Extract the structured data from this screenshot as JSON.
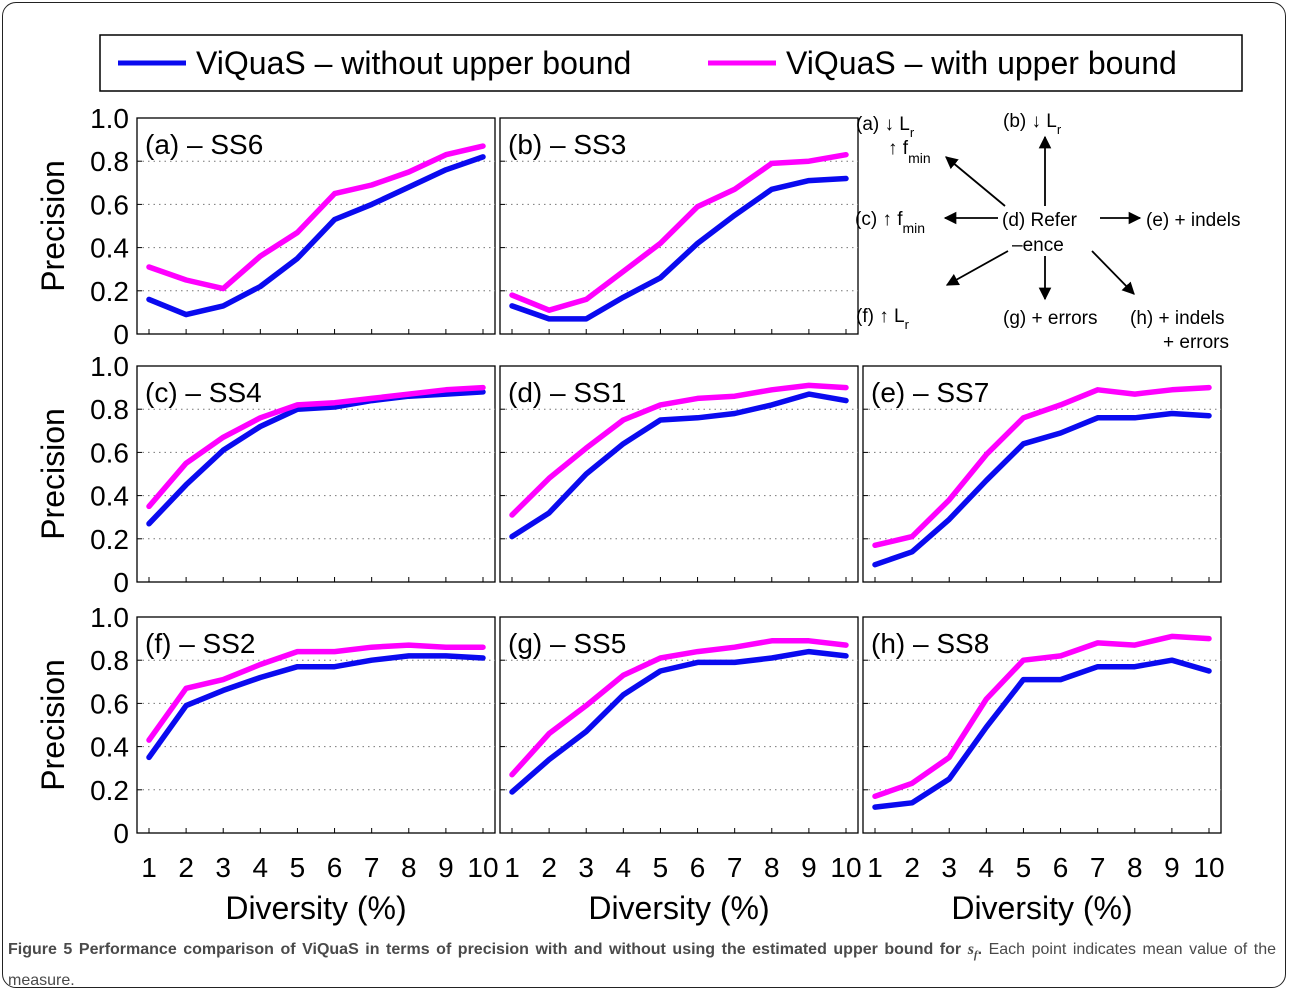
{
  "legend": {
    "items": [
      {
        "label": "ViQuaS – without upper bound",
        "color": "#0a0aef"
      },
      {
        "label": "ViQuaS – with upper bound",
        "color": "#ff00ff"
      }
    ]
  },
  "caption": {
    "label": "Figure 5",
    "title_pre": "Performance comparison of ViQuaS in terms of precision with and without using the estimated upper bound for",
    "sym": "s",
    "sym_sub": "f",
    "title_end": ".",
    "rest": "Each point indicates mean value of the measure."
  },
  "diagram": {
    "center_top": "(d) Refer",
    "center_bottom": "–ence",
    "a_line1": "(a) ↓ L",
    "a_line1_sub": "r",
    "a_line2": "↑ f",
    "a_line2_sub": "min",
    "b": "(b) ↓ L",
    "b_sub": "r",
    "c": "(c) ↑ f",
    "c_sub": "min",
    "e": "(e) + indels",
    "f": "(f) ↑ L",
    "f_sub": "r",
    "g": "(g) + errors",
    "h_line1": "(h) + indels",
    "h_line2": "+ errors"
  },
  "chart_data": [
    {
      "type": "line",
      "title": "(a) – SS6",
      "xlabel": "",
      "ylabel": "Precision",
      "x": [
        1,
        2,
        3,
        4,
        5,
        6,
        7,
        8,
        9,
        10
      ],
      "ylim": [
        0,
        1.0
      ],
      "yticks": [
        "0",
        "0.2",
        "0.4",
        "0.6",
        "0.8",
        "1.0"
      ],
      "xticks": [],
      "grid": "y-dotted",
      "series": [
        {
          "name": "ViQuaS – without upper bound",
          "color": "#0a0aef",
          "values": [
            0.16,
            0.09,
            0.13,
            0.22,
            0.35,
            0.53,
            0.6,
            0.68,
            0.76,
            0.82
          ]
        },
        {
          "name": "ViQuaS – with upper bound",
          "color": "#ff00ff",
          "values": [
            0.31,
            0.25,
            0.21,
            0.36,
            0.47,
            0.65,
            0.69,
            0.75,
            0.83,
            0.87
          ]
        }
      ]
    },
    {
      "type": "line",
      "title": "(b) – SS3",
      "xlabel": "",
      "ylabel": "",
      "x": [
        1,
        2,
        3,
        4,
        5,
        6,
        7,
        8,
        9,
        10
      ],
      "ylim": [
        0,
        1.0
      ],
      "yticks": [],
      "xticks": [],
      "grid": "y-dotted",
      "series": [
        {
          "name": "ViQuaS – without upper bound",
          "color": "#0a0aef",
          "values": [
            0.13,
            0.07,
            0.07,
            0.17,
            0.26,
            0.42,
            0.55,
            0.67,
            0.71,
            0.72
          ]
        },
        {
          "name": "ViQuaS – with upper bound",
          "color": "#ff00ff",
          "values": [
            0.18,
            0.11,
            0.16,
            0.29,
            0.42,
            0.59,
            0.67,
            0.79,
            0.8,
            0.83
          ]
        }
      ]
    },
    {
      "type": "line",
      "title": "(c) – SS4",
      "xlabel": "",
      "ylabel": "Precision",
      "x": [
        1,
        2,
        3,
        4,
        5,
        6,
        7,
        8,
        9,
        10
      ],
      "ylim": [
        0,
        1.0
      ],
      "yticks": [
        "0",
        "0.2",
        "0.4",
        "0.6",
        "0.8",
        "1.0"
      ],
      "xticks": [],
      "grid": "y-dotted",
      "series": [
        {
          "name": "ViQuaS – without upper bound",
          "color": "#0a0aef",
          "values": [
            0.27,
            0.45,
            0.61,
            0.72,
            0.8,
            0.81,
            0.84,
            0.86,
            0.87,
            0.88
          ]
        },
        {
          "name": "ViQuaS – with upper bound",
          "color": "#ff00ff",
          "values": [
            0.35,
            0.55,
            0.67,
            0.76,
            0.82,
            0.83,
            0.85,
            0.87,
            0.89,
            0.9
          ]
        }
      ]
    },
    {
      "type": "line",
      "title": "(d) – SS1",
      "xlabel": "",
      "ylabel": "",
      "x": [
        1,
        2,
        3,
        4,
        5,
        6,
        7,
        8,
        9,
        10
      ],
      "ylim": [
        0,
        1.0
      ],
      "yticks": [],
      "xticks": [],
      "grid": "y-dotted",
      "series": [
        {
          "name": "ViQuaS – without upper bound",
          "color": "#0a0aef",
          "values": [
            0.21,
            0.32,
            0.5,
            0.64,
            0.75,
            0.76,
            0.78,
            0.82,
            0.87,
            0.84
          ]
        },
        {
          "name": "ViQuaS – with upper bound",
          "color": "#ff00ff",
          "values": [
            0.31,
            0.48,
            0.62,
            0.75,
            0.82,
            0.85,
            0.86,
            0.89,
            0.91,
            0.9
          ]
        }
      ]
    },
    {
      "type": "line",
      "title": "(e) – SS7",
      "xlabel": "",
      "ylabel": "",
      "x": [
        1,
        2,
        3,
        4,
        5,
        6,
        7,
        8,
        9,
        10
      ],
      "ylim": [
        0,
        1.0
      ],
      "yticks": [],
      "xticks": [],
      "grid": "y-dotted",
      "series": [
        {
          "name": "ViQuaS – without upper bound",
          "color": "#0a0aef",
          "values": [
            0.08,
            0.14,
            0.29,
            0.47,
            0.64,
            0.69,
            0.76,
            0.76,
            0.78,
            0.77
          ]
        },
        {
          "name": "ViQuaS – with upper bound",
          "color": "#ff00ff",
          "values": [
            0.17,
            0.21,
            0.38,
            0.59,
            0.76,
            0.82,
            0.89,
            0.87,
            0.89,
            0.9
          ]
        }
      ]
    },
    {
      "type": "line",
      "title": "(f) – SS2",
      "xlabel": "Diversity (%)",
      "ylabel": "Precision",
      "x": [
        1,
        2,
        3,
        4,
        5,
        6,
        7,
        8,
        9,
        10
      ],
      "ylim": [
        0,
        1.0
      ],
      "yticks": [
        "0",
        "0.2",
        "0.4",
        "0.6",
        "0.8",
        "1.0"
      ],
      "xticks": [
        "1",
        "2",
        "3",
        "4",
        "5",
        "6",
        "7",
        "8",
        "9",
        "10"
      ],
      "grid": "y-dotted",
      "series": [
        {
          "name": "ViQuaS – without upper bound",
          "color": "#0a0aef",
          "values": [
            0.35,
            0.59,
            0.66,
            0.72,
            0.77,
            0.77,
            0.8,
            0.82,
            0.82,
            0.81
          ]
        },
        {
          "name": "ViQuaS – with upper bound",
          "color": "#ff00ff",
          "values": [
            0.43,
            0.67,
            0.71,
            0.78,
            0.84,
            0.84,
            0.86,
            0.87,
            0.86,
            0.86
          ]
        }
      ]
    },
    {
      "type": "line",
      "title": "(g) – SS5",
      "xlabel": "Diversity (%)",
      "ylabel": "",
      "x": [
        1,
        2,
        3,
        4,
        5,
        6,
        7,
        8,
        9,
        10
      ],
      "ylim": [
        0,
        1.0
      ],
      "yticks": [],
      "xticks": [
        "1",
        "2",
        "3",
        "4",
        "5",
        "6",
        "7",
        "8",
        "9",
        "10"
      ],
      "grid": "y-dotted",
      "series": [
        {
          "name": "ViQuaS – without upper bound",
          "color": "#0a0aef",
          "values": [
            0.19,
            0.34,
            0.47,
            0.64,
            0.75,
            0.79,
            0.79,
            0.81,
            0.84,
            0.82
          ]
        },
        {
          "name": "ViQuaS – with upper bound",
          "color": "#ff00ff",
          "values": [
            0.27,
            0.46,
            0.59,
            0.73,
            0.81,
            0.84,
            0.86,
            0.89,
            0.89,
            0.87
          ]
        }
      ]
    },
    {
      "type": "line",
      "title": "(h) – SS8",
      "xlabel": "Diversity (%)",
      "ylabel": "",
      "x": [
        1,
        2,
        3,
        4,
        5,
        6,
        7,
        8,
        9,
        10
      ],
      "ylim": [
        0,
        1.0
      ],
      "yticks": [],
      "xticks": [
        "1",
        "2",
        "3",
        "4",
        "5",
        "6",
        "7",
        "8",
        "9",
        "10"
      ],
      "grid": "y-dotted",
      "series": [
        {
          "name": "ViQuaS – without upper bound",
          "color": "#0a0aef",
          "values": [
            0.12,
            0.14,
            0.25,
            0.49,
            0.71,
            0.71,
            0.77,
            0.77,
            0.8,
            0.75
          ]
        },
        {
          "name": "ViQuaS – with upper bound",
          "color": "#ff00ff",
          "values": [
            0.17,
            0.23,
            0.35,
            0.62,
            0.8,
            0.82,
            0.88,
            0.87,
            0.91,
            0.9
          ]
        }
      ]
    }
  ]
}
